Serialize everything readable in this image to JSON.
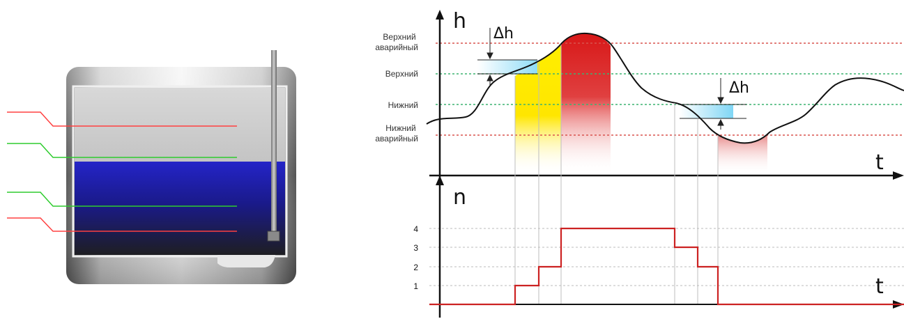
{
  "top_chart": {
    "y_axis": "h",
    "x_axis": "t",
    "levels": [
      {
        "id": "upper-alarm",
        "label_lines": [
          "Верхний",
          "аварийный"
        ],
        "color": "#d9534f"
      },
      {
        "id": "upper",
        "label_lines": [
          "Верхний"
        ],
        "color": "#3cb371"
      },
      {
        "id": "lower",
        "label_lines": [
          "Нижний"
        ],
        "color": "#3cb371"
      },
      {
        "id": "lower-alarm",
        "label_lines": [
          "Нижний",
          "аварийный"
        ],
        "color": "#d9534f"
      }
    ],
    "delta_label": "Δh"
  },
  "bottom_chart": {
    "y_axis": "n",
    "x_axis": "t",
    "ticks": [
      "1",
      "2",
      "3",
      "4"
    ],
    "step_color": "#cc2222"
  },
  "colors": {
    "liquid": "#1a1aa0",
    "alarm_zone": "#dd2222",
    "warning_zone": "#ffee00",
    "hysteresis": "#aee3f5"
  }
}
